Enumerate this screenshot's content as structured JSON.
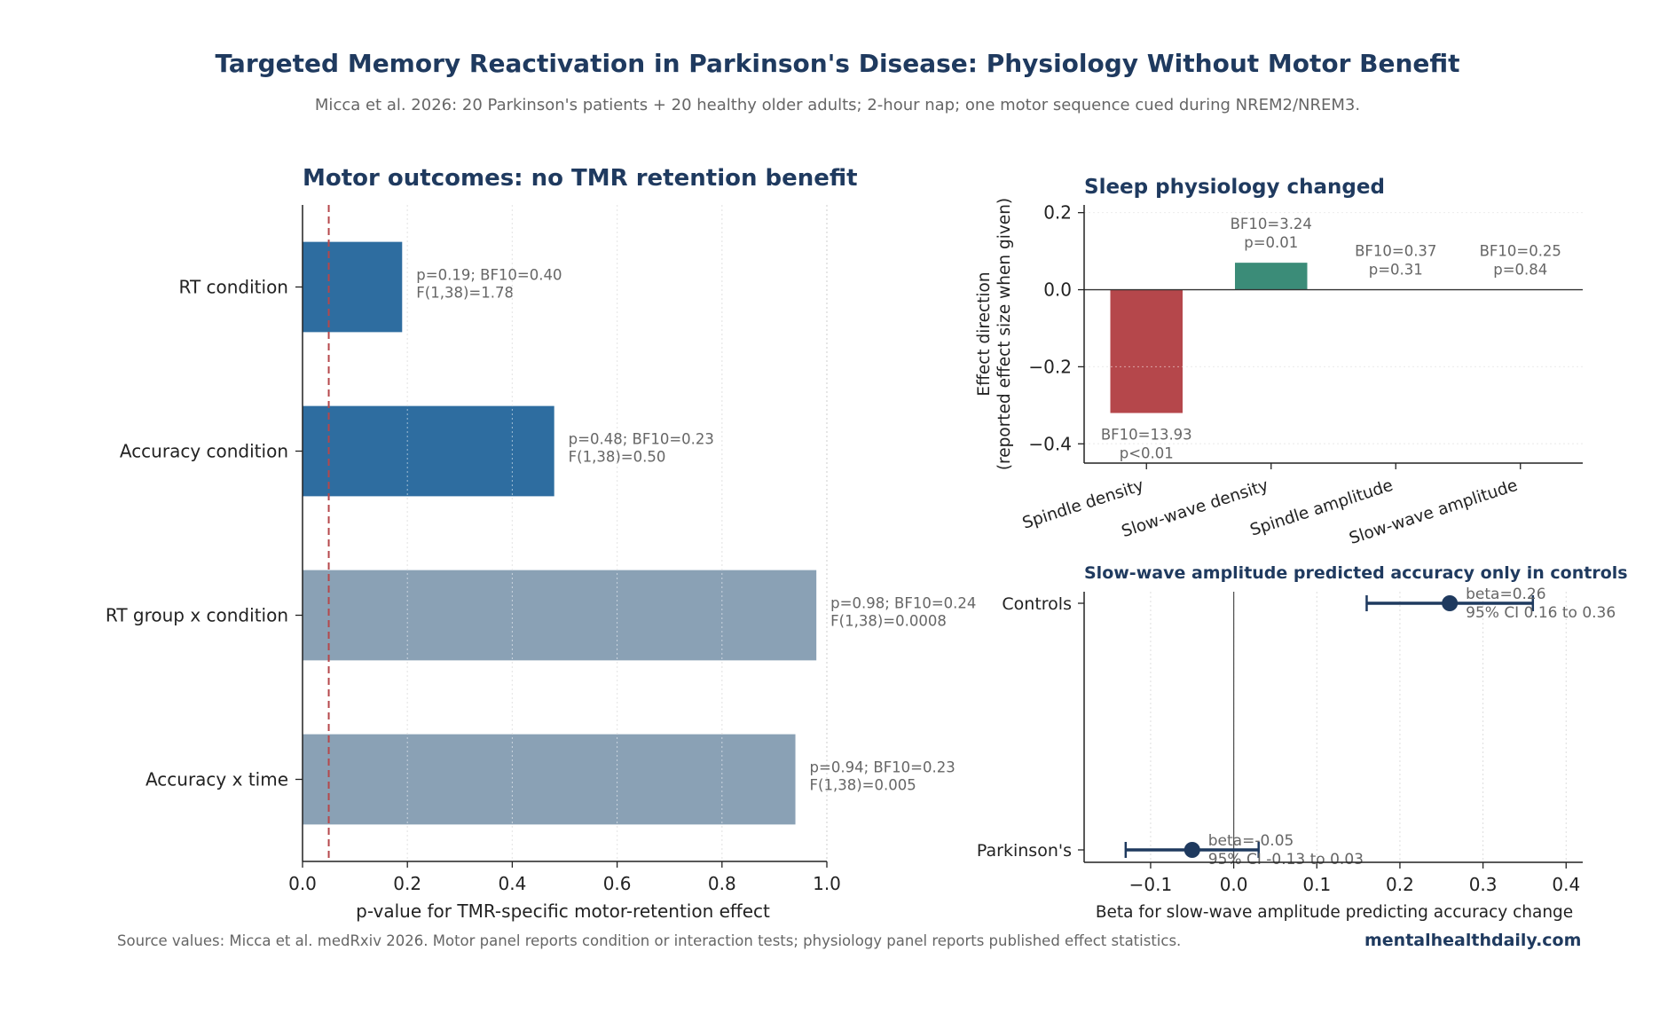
{
  "title": "Targeted Memory Reactivation in Parkinson's Disease: Physiology Without Motor Benefit",
  "subtitle": "Micca et al. 2026: 20 Parkinson's patients + 20 healthy older adults; 2-hour nap; one motor sequence cued during NREM2/NREM3.",
  "footer": {
    "source": "Source values: Micca et al. medRxiv 2026. Motor panel reports condition or interaction tests; physiology panel reports published effect statistics.",
    "brand": "mentalhealthdaily.com"
  },
  "chart_data": [
    {
      "type": "bar",
      "orientation": "horizontal",
      "title": "Motor outcomes: no TMR retention benefit",
      "xlabel": "p-value for TMR-specific motor-retention effect",
      "ylabel": "",
      "xlim": [
        0,
        1.0
      ],
      "xticks": [
        "0.0",
        "0.2",
        "0.4",
        "0.6",
        "0.8",
        "1.0"
      ],
      "grid": "vertical dotted",
      "reference_line": {
        "value": 0.05,
        "style": "dashed",
        "color": "#b5474b"
      },
      "categories": [
        "RT condition",
        "Accuracy condition",
        "RT group x condition",
        "Accuracy x time"
      ],
      "values": [
        0.19,
        0.48,
        0.98,
        0.94
      ],
      "bar_colors": [
        "#2e6da0",
        "#2e6da0",
        "#8aa1b5",
        "#8aa1b5"
      ],
      "labels": [
        [
          "p=0.19; BF10=0.40",
          "F(1,38)=1.78"
        ],
        [
          "p=0.48; BF10=0.23",
          "F(1,38)=0.50"
        ],
        [
          "p=0.98; BF10=0.24",
          "F(1,38)=0.0008"
        ],
        [
          "p=0.94; BF10=0.23",
          "F(1,38)=0.005"
        ]
      ]
    },
    {
      "type": "bar",
      "title": "Sleep physiology changed",
      "xlabel": "",
      "ylabel": "Effect direction\n(reported effect size when given)",
      "ylim": [
        -0.45,
        0.22
      ],
      "yticks": [
        "0.2",
        "0.0",
        "−0.2",
        "−0.4"
      ],
      "grid": "horizontal dotted",
      "categories": [
        "Spindle density",
        "Slow-wave density",
        "Spindle amplitude",
        "Slow-wave amplitude"
      ],
      "values": [
        -0.32,
        0.07,
        0,
        0
      ],
      "bar_colors": [
        "#b5474b",
        "#3b8c78",
        "#999999",
        "#999999"
      ],
      "labels": [
        [
          "BF10=13.93",
          "p<0.01"
        ],
        [
          "BF10=3.24",
          "p=0.01"
        ],
        [
          "BF10=0.37",
          "p=0.31"
        ],
        [
          "BF10=0.25",
          "p=0.84"
        ]
      ]
    },
    {
      "type": "scatter",
      "subtype": "forest",
      "title": "Slow-wave amplitude predicted accuracy only in controls",
      "xlabel": "Beta for slow-wave amplitude predicting accuracy change",
      "ylabel": "",
      "xlim": [
        -0.18,
        0.42
      ],
      "xticks": [
        "−0.1",
        "0.0",
        "0.1",
        "0.2",
        "0.3",
        "0.4"
      ],
      "grid": "vertical dotted",
      "color": "#1f3a5f",
      "categories": [
        "Controls",
        "Parkinson's"
      ],
      "points": [
        {
          "beta": 0.26,
          "ci": [
            0.16,
            0.36
          ],
          "labels": [
            "beta=0.26",
            "95% CI 0.16 to 0.36"
          ]
        },
        {
          "beta": -0.05,
          "ci": [
            -0.13,
            0.03
          ],
          "labels": [
            "beta=-0.05",
            "95% CI -0.13 to 0.03"
          ]
        }
      ]
    }
  ]
}
